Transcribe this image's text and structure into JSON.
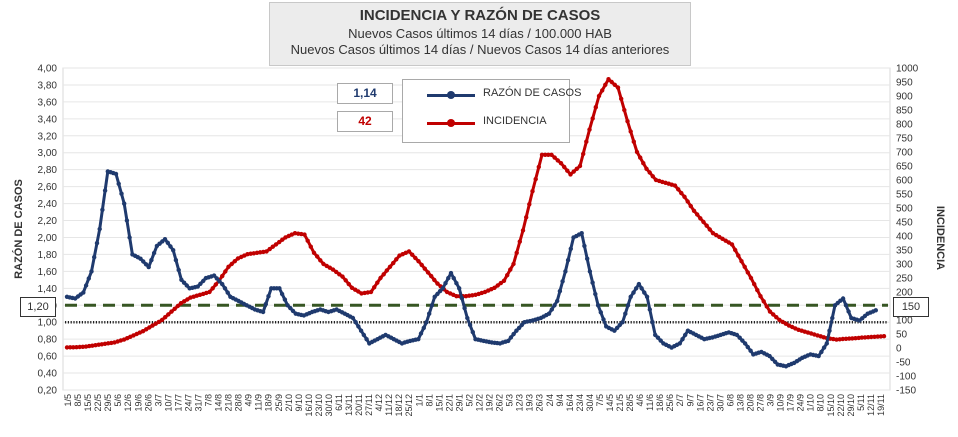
{
  "title": {
    "main": "INCIDENCIA Y RAZÓN DE CASOS",
    "line2": "Nuevos Casos últimos 14 días / 100.000 HAB",
    "line3": "Nuevos Casos últimos 14 días / Nuevos Casos 14 días anteriores"
  },
  "current_values": {
    "razon": "1,14",
    "incidencia": "42"
  },
  "reference": {
    "left_label": "1,20",
    "right_label": "150"
  },
  "colors": {
    "razon": "#1f3a6e",
    "incidencia": "#c00000",
    "threshold": "#375623",
    "baseline": "#222222"
  },
  "chart_data": {
    "type": "line",
    "ylabel": "RAZÓN DE CASOS",
    "y2label": "INCIDENCIA",
    "ylim": [
      0.2,
      4.0
    ],
    "y2lim": [
      -150,
      1000
    ],
    "yticks": [
      "0,20",
      "0,40",
      "0,60",
      "0,80",
      "1,00",
      "1,20",
      "1,40",
      "1,60",
      "1,80",
      "2,00",
      "2,20",
      "2,40",
      "2,60",
      "2,80",
      "3,00",
      "3,20",
      "3,40",
      "3,60",
      "3,80",
      "4,00"
    ],
    "y2ticks": [
      "-150",
      "-100",
      "-50",
      "0",
      "50",
      "100",
      "150",
      "200",
      "250",
      "300",
      "350",
      "400",
      "450",
      "500",
      "550",
      "600",
      "650",
      "700",
      "750",
      "800",
      "850",
      "900",
      "950",
      "1000"
    ],
    "xticks": [
      "1/5",
      "8/5",
      "15/5",
      "22/5",
      "29/5",
      "5/6",
      "12/6",
      "19/6",
      "26/6",
      "3/7",
      "10/7",
      "17/7",
      "24/7",
      "31/7",
      "7/8",
      "14/8",
      "21/8",
      "28/8",
      "4/9",
      "11/9",
      "18/9",
      "25/9",
      "2/10",
      "9/10",
      "16/10",
      "23/10",
      "30/10",
      "6/11",
      "13/11",
      "20/11",
      "27/11",
      "4/12",
      "11/12",
      "18/12",
      "25/12",
      "1/1",
      "8/1",
      "15/1",
      "22/1",
      "29/1",
      "5/2",
      "12/2",
      "19/2",
      "26/2",
      "5/3",
      "12/3",
      "19/3",
      "26/3",
      "2/4",
      "9/4",
      "16/4",
      "23/4",
      "30/4",
      "7/5",
      "14/5",
      "21/5",
      "28/5",
      "4/6",
      "11/6",
      "18/6",
      "25/6",
      "2/7",
      "9/7",
      "16/7",
      "23/7",
      "30/7",
      "6/8",
      "13/8",
      "20/8",
      "27/8",
      "3/9",
      "10/9",
      "17/9",
      "24/9",
      "1/10",
      "8/10",
      "15/10",
      "22/10",
      "29/10",
      "5/11",
      "12/11",
      "19/11"
    ],
    "threshold": {
      "razon": 1.2,
      "incidencia": 150
    },
    "baseline": {
      "razon": 1.0
    },
    "series": [
      {
        "name": "RAZÓN DE CASOS",
        "axis": "left",
        "points": [
          [
            0,
            1.3
          ],
          [
            1,
            1.28
          ],
          [
            2,
            1.35
          ],
          [
            3,
            1.6
          ],
          [
            4,
            2.1
          ],
          [
            5,
            2.78
          ],
          [
            6,
            2.75
          ],
          [
            7,
            2.4
          ],
          [
            8,
            1.8
          ],
          [
            9,
            1.75
          ],
          [
            10,
            1.65
          ],
          [
            11,
            1.9
          ],
          [
            12,
            1.98
          ],
          [
            13,
            1.85
          ],
          [
            14,
            1.5
          ],
          [
            15,
            1.4
          ],
          [
            16,
            1.42
          ],
          [
            17,
            1.52
          ],
          [
            18,
            1.55
          ],
          [
            19,
            1.45
          ],
          [
            20,
            1.3
          ],
          [
            21,
            1.25
          ],
          [
            22,
            1.2
          ],
          [
            23,
            1.15
          ],
          [
            24,
            1.12
          ],
          [
            25,
            1.4
          ],
          [
            26,
            1.4
          ],
          [
            27,
            1.2
          ],
          [
            28,
            1.1
          ],
          [
            29,
            1.08
          ],
          [
            30,
            1.12
          ],
          [
            31,
            1.15
          ],
          [
            32,
            1.12
          ],
          [
            33,
            1.15
          ],
          [
            34,
            1.1
          ],
          [
            35,
            1.05
          ],
          [
            36,
            0.9
          ],
          [
            37,
            0.75
          ],
          [
            38,
            0.8
          ],
          [
            39,
            0.85
          ],
          [
            40,
            0.8
          ],
          [
            41,
            0.75
          ],
          [
            42,
            0.78
          ],
          [
            43,
            0.8
          ],
          [
            44,
            1.0
          ],
          [
            45,
            1.3
          ],
          [
            46,
            1.4
          ],
          [
            47,
            1.58
          ],
          [
            48,
            1.4
          ],
          [
            49,
            1.05
          ],
          [
            50,
            0.8
          ],
          [
            51,
            0.78
          ],
          [
            52,
            0.76
          ],
          [
            53,
            0.75
          ],
          [
            54,
            0.78
          ],
          [
            55,
            0.9
          ],
          [
            56,
            1.0
          ],
          [
            57,
            1.02
          ],
          [
            58,
            1.05
          ],
          [
            59,
            1.1
          ],
          [
            60,
            1.25
          ],
          [
            61,
            1.6
          ],
          [
            62,
            2.0
          ],
          [
            63,
            2.05
          ],
          [
            64,
            1.6
          ],
          [
            65,
            1.2
          ],
          [
            66,
            0.95
          ],
          [
            67,
            0.9
          ],
          [
            68,
            1.0
          ],
          [
            69,
            1.3
          ],
          [
            70,
            1.45
          ],
          [
            71,
            1.3
          ],
          [
            72,
            0.85
          ],
          [
            73,
            0.75
          ],
          [
            74,
            0.7
          ],
          [
            75,
            0.75
          ],
          [
            76,
            0.9
          ],
          [
            77,
            0.85
          ],
          [
            78,
            0.8
          ],
          [
            79,
            0.82
          ],
          [
            80,
            0.85
          ],
          [
            81,
            0.88
          ],
          [
            82,
            0.85
          ],
          [
            83,
            0.75
          ],
          [
            84,
            0.62
          ],
          [
            85,
            0.65
          ],
          [
            86,
            0.6
          ],
          [
            87,
            0.5
          ],
          [
            88,
            0.48
          ],
          [
            89,
            0.52
          ],
          [
            90,
            0.58
          ],
          [
            91,
            0.62
          ],
          [
            92,
            0.6
          ],
          [
            93,
            0.75
          ],
          [
            94,
            1.2
          ],
          [
            95,
            1.28
          ],
          [
            96,
            1.05
          ],
          [
            97,
            1.02
          ],
          [
            98,
            1.1
          ],
          [
            99,
            1.14
          ]
        ]
      },
      {
        "name": "INCIDENCIA",
        "axis": "right",
        "points": [
          [
            0,
            2
          ],
          [
            2,
            3
          ],
          [
            4,
            5
          ],
          [
            6,
            10
          ],
          [
            8,
            15
          ],
          [
            10,
            20
          ],
          [
            12,
            30
          ],
          [
            14,
            45
          ],
          [
            16,
            60
          ],
          [
            18,
            80
          ],
          [
            20,
            100
          ],
          [
            22,
            130
          ],
          [
            24,
            160
          ],
          [
            26,
            180
          ],
          [
            28,
            190
          ],
          [
            30,
            200
          ],
          [
            32,
            240
          ],
          [
            34,
            290
          ],
          [
            36,
            320
          ],
          [
            38,
            335
          ],
          [
            40,
            340
          ],
          [
            42,
            345
          ],
          [
            44,
            370
          ],
          [
            46,
            395
          ],
          [
            48,
            410
          ],
          [
            50,
            405
          ],
          [
            52,
            340
          ],
          [
            54,
            300
          ],
          [
            56,
            280
          ],
          [
            58,
            255
          ],
          [
            60,
            215
          ],
          [
            62,
            195
          ],
          [
            64,
            200
          ],
          [
            66,
            250
          ],
          [
            68,
            290
          ],
          [
            70,
            330
          ],
          [
            72,
            345
          ],
          [
            74,
            310
          ],
          [
            76,
            270
          ],
          [
            78,
            230
          ],
          [
            80,
            200
          ],
          [
            82,
            185
          ],
          [
            84,
            185
          ],
          [
            86,
            190
          ],
          [
            88,
            200
          ],
          [
            90,
            215
          ],
          [
            92,
            240
          ],
          [
            94,
            300
          ],
          [
            96,
            420
          ],
          [
            98,
            560
          ],
          [
            100,
            690
          ],
          [
            102,
            690
          ],
          [
            104,
            660
          ],
          [
            106,
            620
          ],
          [
            108,
            650
          ],
          [
            110,
            780
          ],
          [
            112,
            900
          ],
          [
            114,
            960
          ],
          [
            116,
            930
          ],
          [
            118,
            810
          ],
          [
            120,
            700
          ],
          [
            122,
            640
          ],
          [
            124,
            600
          ],
          [
            126,
            590
          ],
          [
            128,
            580
          ],
          [
            130,
            540
          ],
          [
            132,
            490
          ],
          [
            134,
            450
          ],
          [
            136,
            410
          ],
          [
            138,
            390
          ],
          [
            140,
            370
          ],
          [
            142,
            310
          ],
          [
            144,
            250
          ],
          [
            146,
            185
          ],
          [
            148,
            130
          ],
          [
            150,
            100
          ],
          [
            152,
            80
          ],
          [
            154,
            65
          ],
          [
            156,
            55
          ],
          [
            158,
            45
          ],
          [
            160,
            35
          ],
          [
            162,
            30
          ],
          [
            164,
            33
          ],
          [
            166,
            35
          ],
          [
            168,
            38
          ],
          [
            170,
            40
          ],
          [
            172,
            42
          ]
        ]
      }
    ]
  }
}
